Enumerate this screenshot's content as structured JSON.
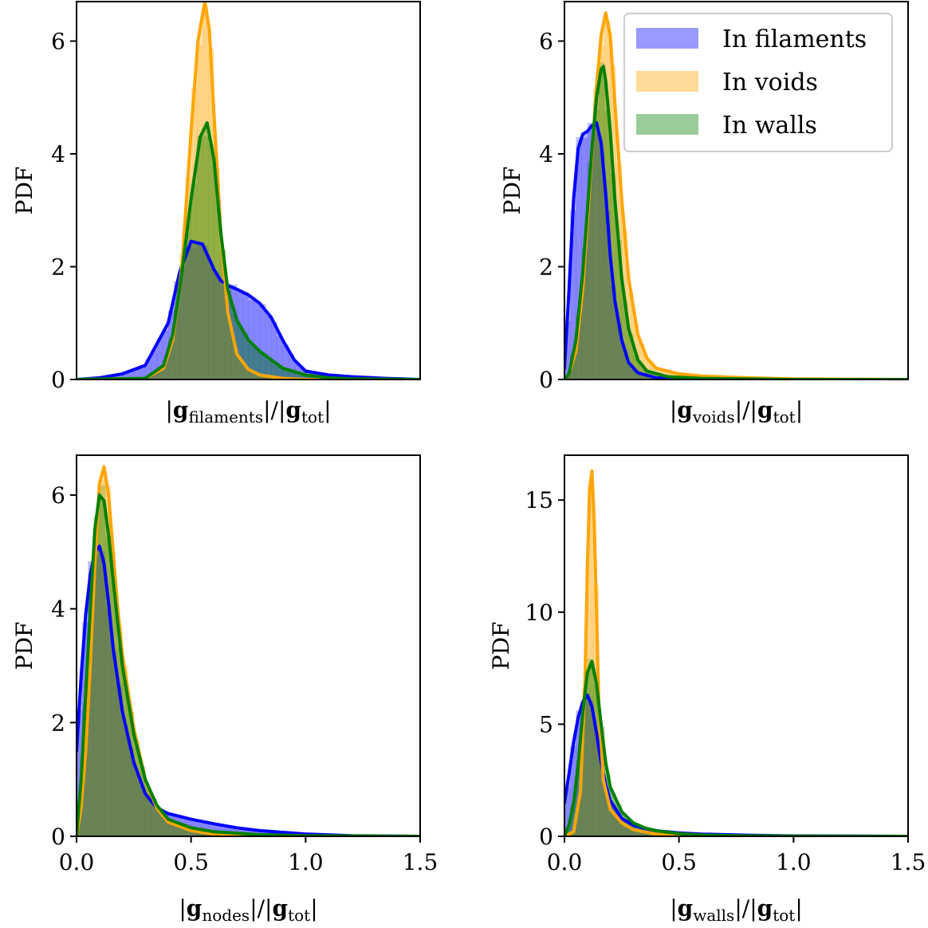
{
  "figure": {
    "ylabel": "PDF",
    "legend": {
      "placement": "upper-right of top-right panel",
      "entries": [
        {
          "label": "In filaments",
          "color": "#0000ff"
        },
        {
          "label": "In voids",
          "color": "#ffa500"
        },
        {
          "label": "In walls",
          "color": "#008000"
        }
      ]
    }
  },
  "colors": {
    "filaments": "#0000ff",
    "voids": "#ffa500",
    "walls": "#008000"
  },
  "chart_data": [
    {
      "type": "line",
      "panel": "top-left",
      "xlabel_parts": {
        "main": "g",
        "sub": "filaments",
        "den_main": "g",
        "den_sub": "tot"
      },
      "xlim": [
        0,
        1.5
      ],
      "ylim": [
        0,
        6.7
      ],
      "xtick_labels_shown": false,
      "yticks": [
        0,
        2,
        4,
        6
      ],
      "series": [
        {
          "name": "In filaments",
          "key": "filaments",
          "x": [
            0,
            0.1,
            0.2,
            0.3,
            0.4,
            0.45,
            0.5,
            0.55,
            0.6,
            0.63,
            0.67,
            0.7,
            0.75,
            0.8,
            0.85,
            0.9,
            0.95,
            1.0,
            1.1,
            1.2,
            1.35,
            1.5
          ],
          "y": [
            0,
            0.03,
            0.1,
            0.25,
            1.0,
            1.9,
            2.45,
            2.4,
            1.95,
            1.75,
            1.65,
            1.6,
            1.5,
            1.35,
            1.1,
            0.7,
            0.35,
            0.15,
            0.08,
            0.05,
            0.02,
            0
          ]
        },
        {
          "name": "In voids",
          "key": "voids",
          "x": [
            0,
            0.3,
            0.38,
            0.42,
            0.46,
            0.5,
            0.53,
            0.56,
            0.58,
            0.6,
            0.63,
            0.66,
            0.7,
            0.75,
            0.8,
            0.9,
            1.0,
            1.2,
            1.5
          ],
          "y": [
            0,
            0.02,
            0.2,
            0.7,
            2.0,
            4.4,
            6.0,
            6.7,
            6.2,
            4.7,
            2.6,
            1.2,
            0.45,
            0.18,
            0.08,
            0.02,
            0,
            0,
            0
          ]
        },
        {
          "name": "In walls",
          "key": "walls",
          "x": [
            0,
            0.3,
            0.38,
            0.42,
            0.46,
            0.5,
            0.54,
            0.57,
            0.6,
            0.63,
            0.66,
            0.7,
            0.75,
            0.8,
            0.9,
            1.0,
            1.1,
            1.2,
            1.5
          ],
          "y": [
            0,
            0.02,
            0.25,
            0.8,
            1.9,
            3.2,
            4.3,
            4.55,
            3.9,
            2.6,
            1.6,
            1.05,
            0.7,
            0.5,
            0.2,
            0.08,
            0.03,
            0.01,
            0
          ]
        }
      ]
    },
    {
      "type": "line",
      "panel": "top-right",
      "xlabel_parts": {
        "main": "g",
        "sub": "voids",
        "den_main": "g",
        "den_sub": "tot"
      },
      "xlim": [
        0,
        1.5
      ],
      "ylim": [
        0,
        6.7
      ],
      "xtick_labels_shown": false,
      "yticks": [
        0,
        2,
        4,
        6
      ],
      "series": [
        {
          "name": "In filaments",
          "key": "filaments",
          "x": [
            0,
            0.02,
            0.04,
            0.06,
            0.08,
            0.1,
            0.12,
            0.14,
            0.16,
            0.18,
            0.2,
            0.22,
            0.25,
            0.28,
            0.32,
            0.4,
            0.6,
            1.0,
            1.5
          ],
          "y": [
            0.2,
            1.6,
            3.2,
            4.1,
            4.35,
            4.4,
            4.5,
            4.55,
            4.2,
            3.3,
            2.2,
            1.4,
            0.7,
            0.3,
            0.12,
            0.03,
            0,
            0,
            0
          ]
        },
        {
          "name": "In voids",
          "key": "voids",
          "x": [
            0,
            0.02,
            0.05,
            0.08,
            0.1,
            0.12,
            0.14,
            0.16,
            0.18,
            0.2,
            0.22,
            0.25,
            0.28,
            0.32,
            0.36,
            0.4,
            0.5,
            0.6,
            0.8,
            1.0,
            1.5
          ],
          "y": [
            0,
            0.1,
            0.5,
            1.6,
            2.8,
            4.0,
            5.2,
            6.1,
            6.5,
            6.1,
            4.9,
            3.2,
            1.8,
            0.8,
            0.38,
            0.2,
            0.1,
            0.06,
            0.03,
            0.01,
            0
          ]
        },
        {
          "name": "In walls",
          "key": "walls",
          "x": [
            0,
            0.02,
            0.05,
            0.08,
            0.1,
            0.12,
            0.14,
            0.16,
            0.17,
            0.18,
            0.2,
            0.22,
            0.25,
            0.28,
            0.32,
            0.36,
            0.45,
            0.6,
            1.0,
            1.5
          ],
          "y": [
            0,
            0.1,
            0.7,
            1.9,
            3.0,
            4.1,
            5.0,
            5.5,
            5.55,
            5.3,
            4.4,
            3.2,
            1.8,
            0.9,
            0.35,
            0.15,
            0.05,
            0.02,
            0,
            0
          ]
        }
      ]
    },
    {
      "type": "line",
      "panel": "bottom-left",
      "xlabel_parts": {
        "main": "g",
        "sub": "nodes",
        "den_main": "g",
        "den_sub": "tot"
      },
      "xlim": [
        0,
        1.5
      ],
      "ylim": [
        0,
        6.7
      ],
      "xticks": [
        0.0,
        0.5,
        1.0,
        1.5
      ],
      "xtick_labels": [
        "0.0",
        "0.5",
        "1.0",
        "1.5"
      ],
      "yticks": [
        0,
        2,
        4,
        6
      ],
      "series": [
        {
          "name": "In filaments",
          "key": "filaments",
          "x": [
            0,
            0.02,
            0.04,
            0.06,
            0.08,
            0.1,
            0.12,
            0.14,
            0.16,
            0.2,
            0.25,
            0.3,
            0.35,
            0.4,
            0.5,
            0.6,
            0.7,
            0.8,
            0.9,
            1.0,
            1.2,
            1.5
          ],
          "y": [
            1.5,
            2.8,
            3.9,
            4.6,
            5.0,
            5.1,
            4.8,
            4.1,
            3.3,
            2.2,
            1.3,
            0.75,
            0.5,
            0.4,
            0.3,
            0.22,
            0.15,
            0.1,
            0.07,
            0.04,
            0.01,
            0
          ]
        },
        {
          "name": "In voids",
          "key": "voids",
          "x": [
            0,
            0.02,
            0.04,
            0.06,
            0.08,
            0.1,
            0.12,
            0.14,
            0.16,
            0.18,
            0.2,
            0.25,
            0.3,
            0.35,
            0.4,
            0.5,
            0.6,
            0.8,
            1.0,
            1.5
          ],
          "y": [
            0,
            0.5,
            1.5,
            3.0,
            4.8,
            6.2,
            6.5,
            6.0,
            5.0,
            4.0,
            3.2,
            1.9,
            1.0,
            0.5,
            0.25,
            0.1,
            0.04,
            0.01,
            0,
            0
          ]
        },
        {
          "name": "In walls",
          "key": "walls",
          "x": [
            0,
            0.02,
            0.04,
            0.06,
            0.08,
            0.1,
            0.12,
            0.14,
            0.16,
            0.2,
            0.25,
            0.3,
            0.35,
            0.4,
            0.5,
            0.6,
            0.8,
            1.0,
            1.5
          ],
          "y": [
            0,
            1.0,
            2.5,
            4.0,
            5.4,
            6.0,
            5.9,
            5.3,
            4.5,
            3.0,
            1.8,
            1.0,
            0.55,
            0.3,
            0.15,
            0.08,
            0.03,
            0.01,
            0
          ]
        }
      ]
    },
    {
      "type": "line",
      "panel": "bottom-right",
      "xlabel_parts": {
        "main": "g",
        "sub": "walls",
        "den_main": "g",
        "den_sub": "tot"
      },
      "xlim": [
        0,
        1.5
      ],
      "ylim": [
        0,
        17
      ],
      "xticks": [
        0.0,
        0.5,
        1.0,
        1.5
      ],
      "xtick_labels": [
        "0.0",
        "0.5",
        "1.0",
        "1.5"
      ],
      "yticks": [
        0,
        5,
        10,
        15
      ],
      "series": [
        {
          "name": "In filaments",
          "key": "filaments",
          "x": [
            0,
            0.02,
            0.04,
            0.06,
            0.08,
            0.1,
            0.12,
            0.14,
            0.16,
            0.18,
            0.2,
            0.25,
            0.3,
            0.35,
            0.4,
            0.5,
            0.6,
            0.8,
            1.0,
            1.5
          ],
          "y": [
            1.5,
            2.8,
            4.2,
            5.3,
            6.0,
            6.3,
            5.8,
            4.6,
            3.3,
            2.3,
            1.6,
            0.8,
            0.5,
            0.35,
            0.25,
            0.15,
            0.1,
            0.05,
            0.02,
            0
          ]
        },
        {
          "name": "In voids",
          "key": "voids",
          "x": [
            0,
            0.04,
            0.07,
            0.09,
            0.1,
            0.11,
            0.12,
            0.13,
            0.14,
            0.15,
            0.17,
            0.2,
            0.25,
            0.3,
            0.4,
            0.6,
            1.0,
            1.5
          ],
          "y": [
            0,
            0.2,
            2.0,
            7.0,
            12.0,
            15.5,
            16.3,
            14.0,
            10.0,
            6.0,
            2.5,
            1.2,
            0.6,
            0.3,
            0.1,
            0.03,
            0,
            0
          ]
        },
        {
          "name": "In walls",
          "key": "walls",
          "x": [
            0,
            0.02,
            0.04,
            0.06,
            0.08,
            0.1,
            0.12,
            0.14,
            0.16,
            0.18,
            0.2,
            0.25,
            0.3,
            0.35,
            0.4,
            0.5,
            0.6,
            0.8,
            1.0,
            1.5
          ],
          "y": [
            0,
            0.5,
            1.5,
            3.2,
            5.5,
            7.3,
            7.8,
            6.8,
            5.0,
            3.3,
            2.2,
            1.1,
            0.6,
            0.38,
            0.25,
            0.12,
            0.06,
            0.02,
            0.01,
            0
          ]
        }
      ]
    }
  ]
}
